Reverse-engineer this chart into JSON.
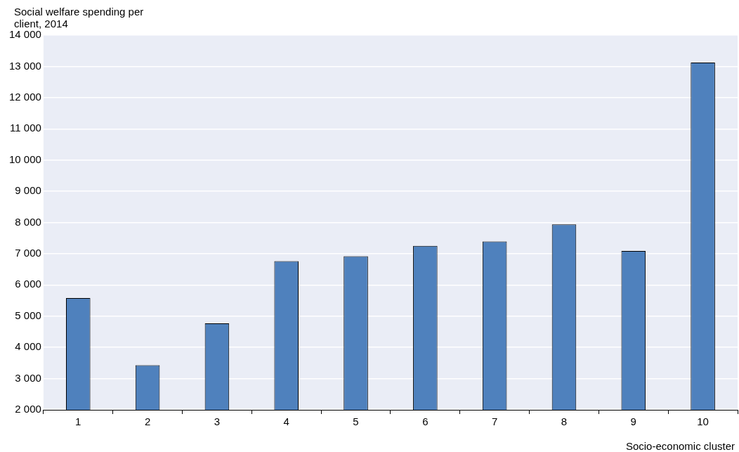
{
  "chart_data": {
    "type": "bar",
    "ylabel": "Social welfare spending per client, 2014",
    "xlabel": "Socio-economic cluster",
    "categories": [
      "1",
      "2",
      "3",
      "4",
      "5",
      "6",
      "7",
      "8",
      "9",
      "10"
    ],
    "series": [
      {
        "color": "#4f81bd",
        "values": [
          5580,
          3430,
          4770,
          6760,
          6920,
          7250,
          7390,
          7940,
          7090,
          13120
        ]
      }
    ],
    "ylim": [
      2000,
      14000
    ],
    "yticks": [
      {
        "value": 2000,
        "label": "2 000"
      },
      {
        "value": 3000,
        "label": "3 000"
      },
      {
        "value": 4000,
        "label": "4 000"
      },
      {
        "value": 5000,
        "label": "5 000"
      },
      {
        "value": 6000,
        "label": "6 000"
      },
      {
        "value": 7000,
        "label": "7 000"
      },
      {
        "value": 8000,
        "label": "8 000"
      },
      {
        "value": 9000,
        "label": "9 000"
      },
      {
        "value": 10000,
        "label": "10 000"
      },
      {
        "value": 11000,
        "label": "11 000"
      },
      {
        "value": 12000,
        "label": "12 000"
      },
      {
        "value": 13000,
        "label": "13 000"
      },
      {
        "value": 14000,
        "label": "14 000"
      }
    ],
    "grid": "y",
    "legend": false
  }
}
